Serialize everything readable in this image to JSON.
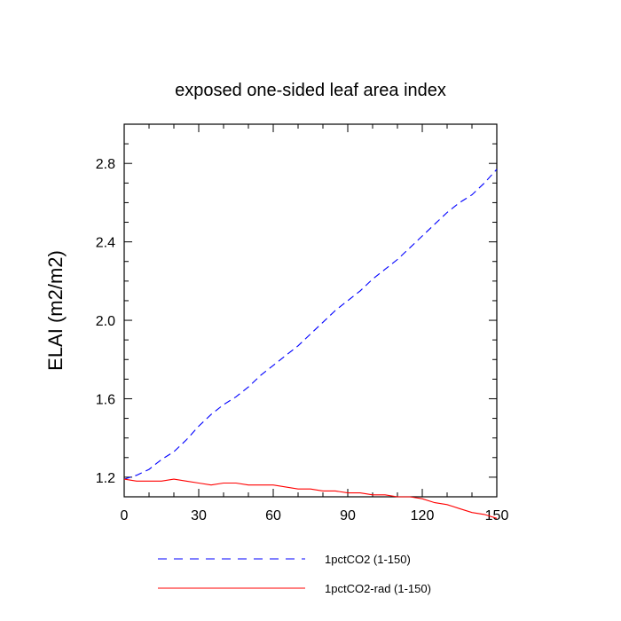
{
  "chart_data": {
    "type": "line",
    "title": "exposed one-sided leaf area index",
    "xlabel": "",
    "ylabel": "ELAI  (m2/m2)",
    "xlim": [
      0,
      150
    ],
    "ylim": [
      1.1,
      3.0
    ],
    "x_ticks": [
      0,
      30,
      60,
      90,
      120,
      150
    ],
    "x_tick_labels": [
      "0",
      "30",
      "60",
      "90",
      "120",
      "150"
    ],
    "y_ticks": [
      1.2,
      1.6,
      2.0,
      2.4,
      2.8
    ],
    "y_tick_labels": [
      "1.2",
      "1.6",
      "2.0",
      "2.4",
      "2.8"
    ],
    "grid": false,
    "legend_position": "bottom",
    "series": [
      {
        "name": "1pctCO2 (1-150)",
        "color": "#0000ff",
        "dash": "dashed",
        "x": [
          0,
          5,
          10,
          15,
          20,
          25,
          30,
          35,
          40,
          45,
          50,
          55,
          60,
          65,
          70,
          75,
          80,
          85,
          90,
          95,
          100,
          105,
          110,
          115,
          120,
          125,
          130,
          135,
          140,
          145,
          150
        ],
        "y": [
          1.19,
          1.21,
          1.24,
          1.29,
          1.33,
          1.39,
          1.46,
          1.52,
          1.57,
          1.61,
          1.66,
          1.72,
          1.77,
          1.82,
          1.87,
          1.93,
          1.99,
          2.05,
          2.1,
          2.15,
          2.21,
          2.26,
          2.31,
          2.37,
          2.43,
          2.49,
          2.55,
          2.6,
          2.64,
          2.7,
          2.77
        ]
      },
      {
        "name": "1pctCO2-rad (1-150)",
        "color": "#ff0000",
        "dash": "solid",
        "x": [
          0,
          5,
          10,
          15,
          20,
          25,
          30,
          35,
          40,
          45,
          50,
          55,
          60,
          65,
          70,
          75,
          80,
          85,
          90,
          95,
          100,
          105,
          110,
          115,
          120,
          125,
          130,
          135,
          140,
          145,
          150
        ],
        "y": [
          1.19,
          1.18,
          1.18,
          1.18,
          1.19,
          1.18,
          1.17,
          1.16,
          1.17,
          1.17,
          1.16,
          1.16,
          1.16,
          1.15,
          1.14,
          1.14,
          1.13,
          1.13,
          1.12,
          1.12,
          1.11,
          1.11,
          1.1,
          1.1,
          1.09,
          1.07,
          1.06,
          1.04,
          1.02,
          1.01,
          0.99
        ]
      }
    ]
  }
}
